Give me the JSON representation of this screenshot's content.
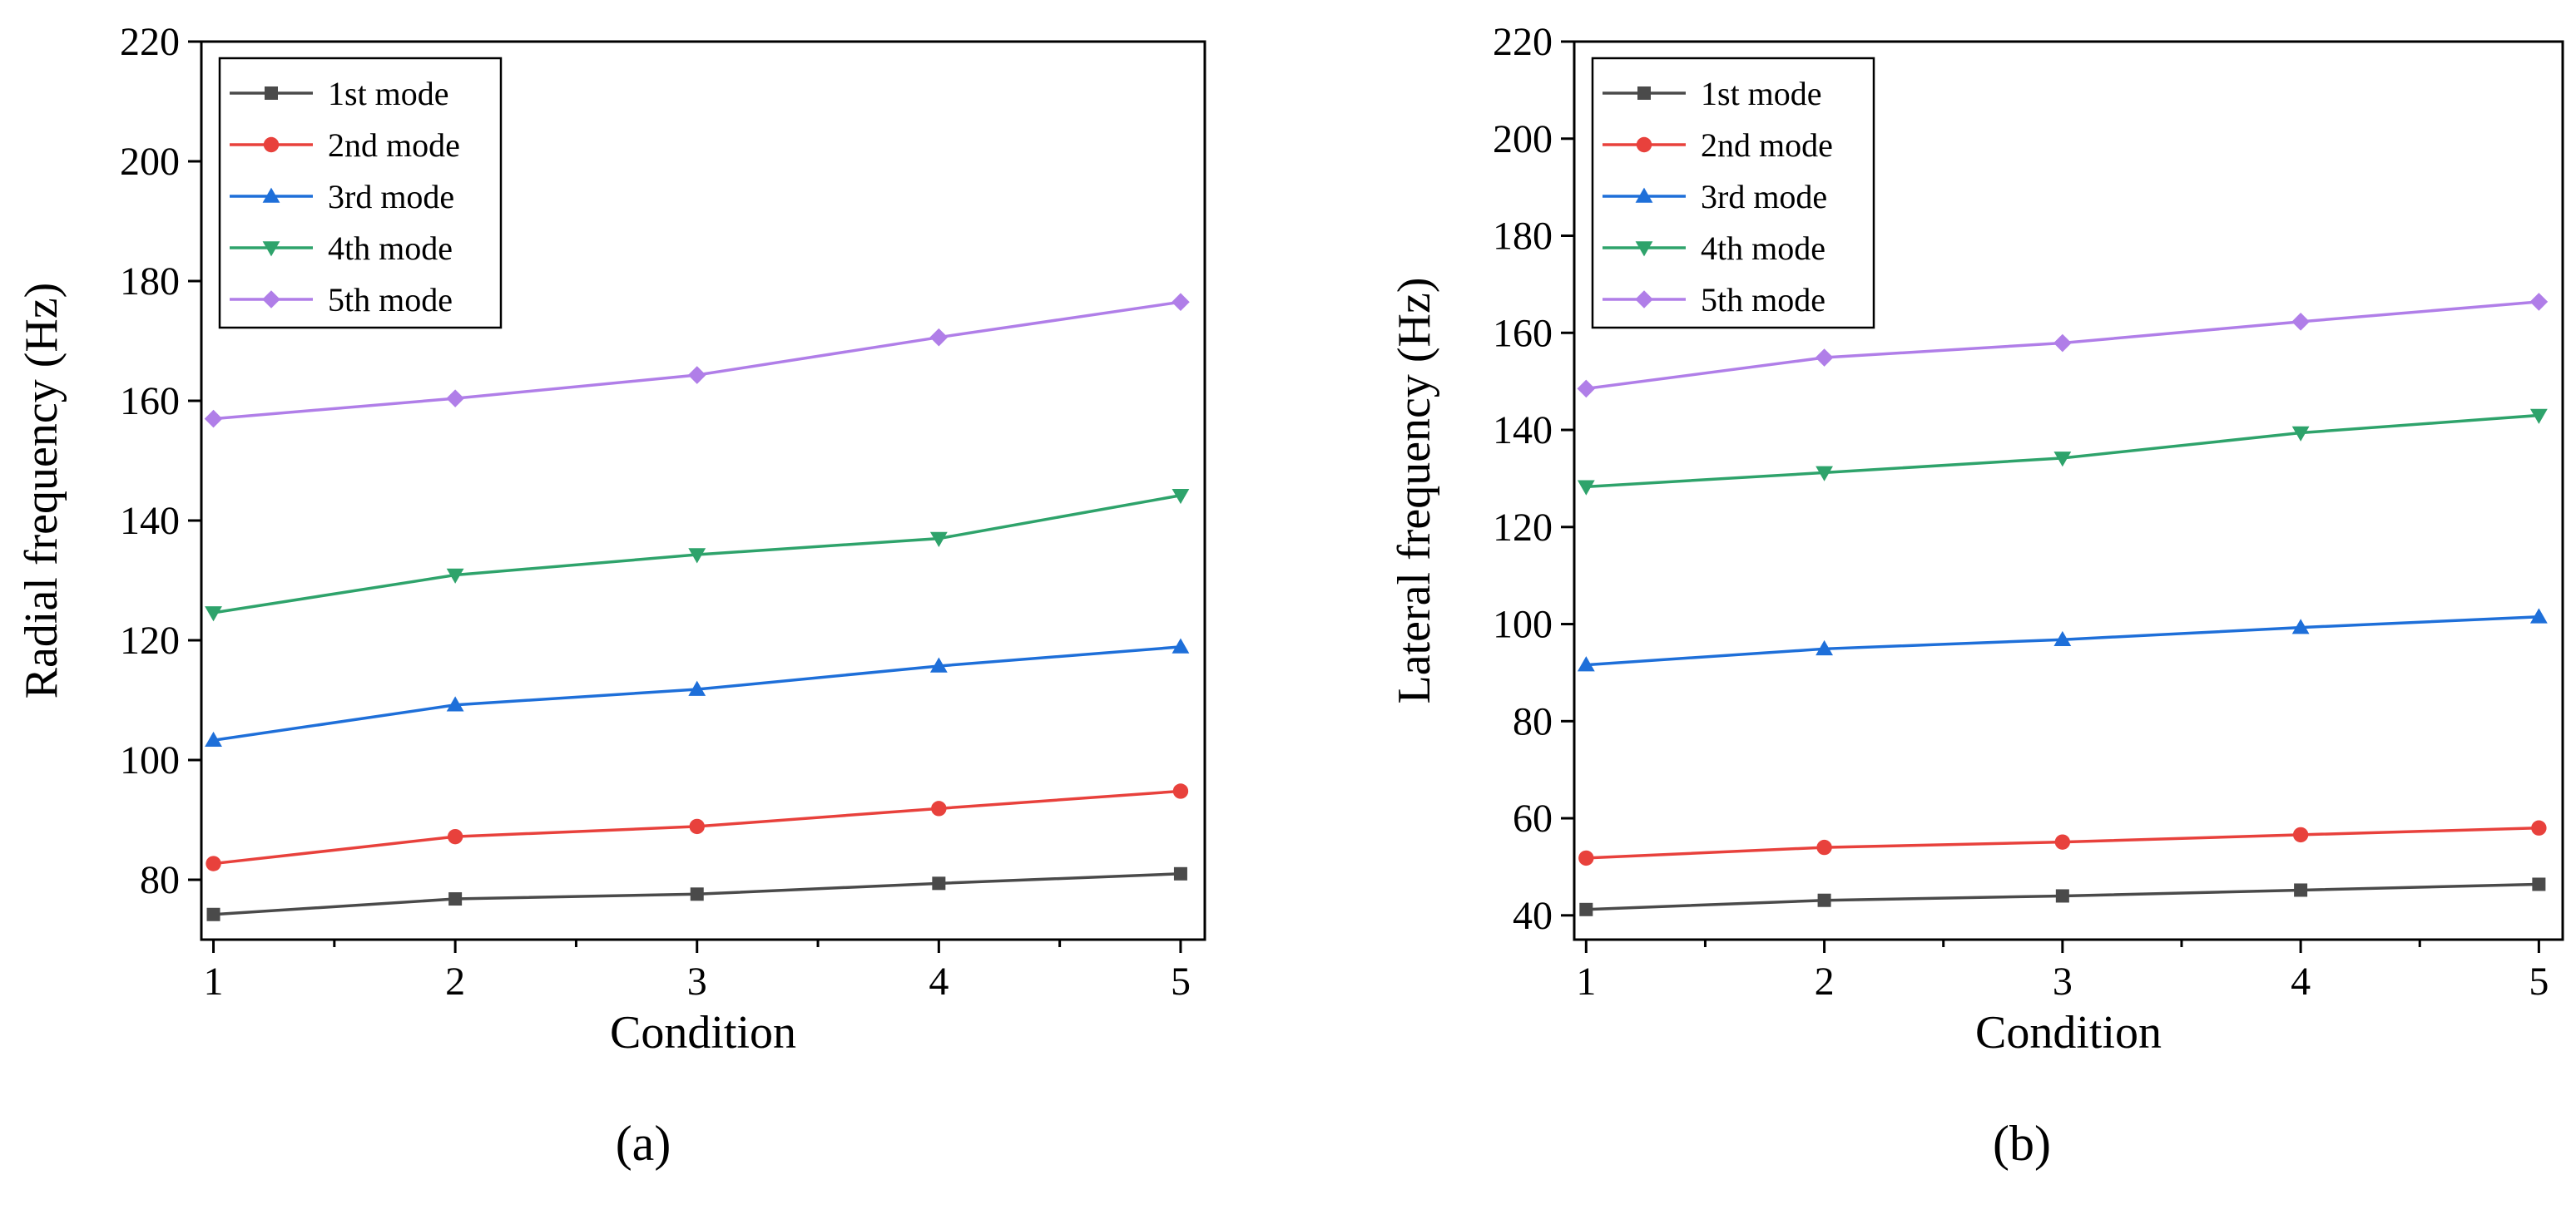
{
  "chart_data": [
    {
      "type": "line",
      "panel_label": "(a)",
      "xlabel": "Condition",
      "ylabel": "Radial frequency (Hz)",
      "x": [
        1,
        2,
        3,
        4,
        5
      ],
      "xticks": [
        "1",
        "2",
        "3",
        "4",
        "5"
      ],
      "xlim": [
        0.95,
        5.1
      ],
      "ylim": [
        70,
        220
      ],
      "yticks": [
        "80",
        "100",
        "120",
        "140",
        "160",
        "180",
        "200",
        "220"
      ],
      "legend_position": "top-left",
      "series": [
        {
          "name": "1st mode",
          "color": "#4a4a4a",
          "marker": "square",
          "values": [
            74.2,
            76.8,
            77.6,
            79.4,
            81.0
          ]
        },
        {
          "name": "2nd mode",
          "color": "#e8413c",
          "marker": "circle",
          "values": [
            82.7,
            87.2,
            88.9,
            91.9,
            94.8
          ]
        },
        {
          "name": "3rd mode",
          "color": "#1e6fd9",
          "marker": "triangle-up",
          "values": [
            103.3,
            109.2,
            111.8,
            115.7,
            118.9
          ]
        },
        {
          "name": "4th mode",
          "color": "#2ea36b",
          "marker": "triangle-down",
          "values": [
            124.6,
            130.9,
            134.3,
            137.0,
            144.2
          ]
        },
        {
          "name": "5th mode",
          "color": "#b07ee8",
          "marker": "diamond",
          "values": [
            157.0,
            160.4,
            164.3,
            170.6,
            176.5
          ]
        }
      ]
    },
    {
      "type": "line",
      "panel_label": "(b)",
      "xlabel": "Condition",
      "ylabel": "Lateral frequency (Hz)",
      "x": [
        1,
        2,
        3,
        4,
        5
      ],
      "xticks": [
        "1",
        "2",
        "3",
        "4",
        "5"
      ],
      "xlim": [
        0.95,
        5.1
      ],
      "ylim": [
        35,
        220
      ],
      "yticks": [
        "40",
        "60",
        "80",
        "100",
        "120",
        "140",
        "160",
        "180",
        "200",
        "220"
      ],
      "legend_position": "top-left",
      "series": [
        {
          "name": "1st mode",
          "color": "#4a4a4a",
          "marker": "square",
          "values": [
            41.2,
            43.1,
            44.0,
            45.2,
            46.4
          ]
        },
        {
          "name": "2nd mode",
          "color": "#e8413c",
          "marker": "circle",
          "values": [
            51.8,
            54.0,
            55.1,
            56.6,
            58.0
          ]
        },
        {
          "name": "3rd mode",
          "color": "#1e6fd9",
          "marker": "triangle-up",
          "values": [
            91.6,
            94.9,
            96.8,
            99.3,
            101.5
          ]
        },
        {
          "name": "4th mode",
          "color": "#2ea36b",
          "marker": "triangle-down",
          "values": [
            128.3,
            131.2,
            134.2,
            139.4,
            143.0
          ]
        },
        {
          "name": "5th mode",
          "color": "#b07ee8",
          "marker": "diamond",
          "values": [
            148.5,
            154.9,
            157.9,
            162.3,
            166.4
          ]
        }
      ]
    }
  ]
}
